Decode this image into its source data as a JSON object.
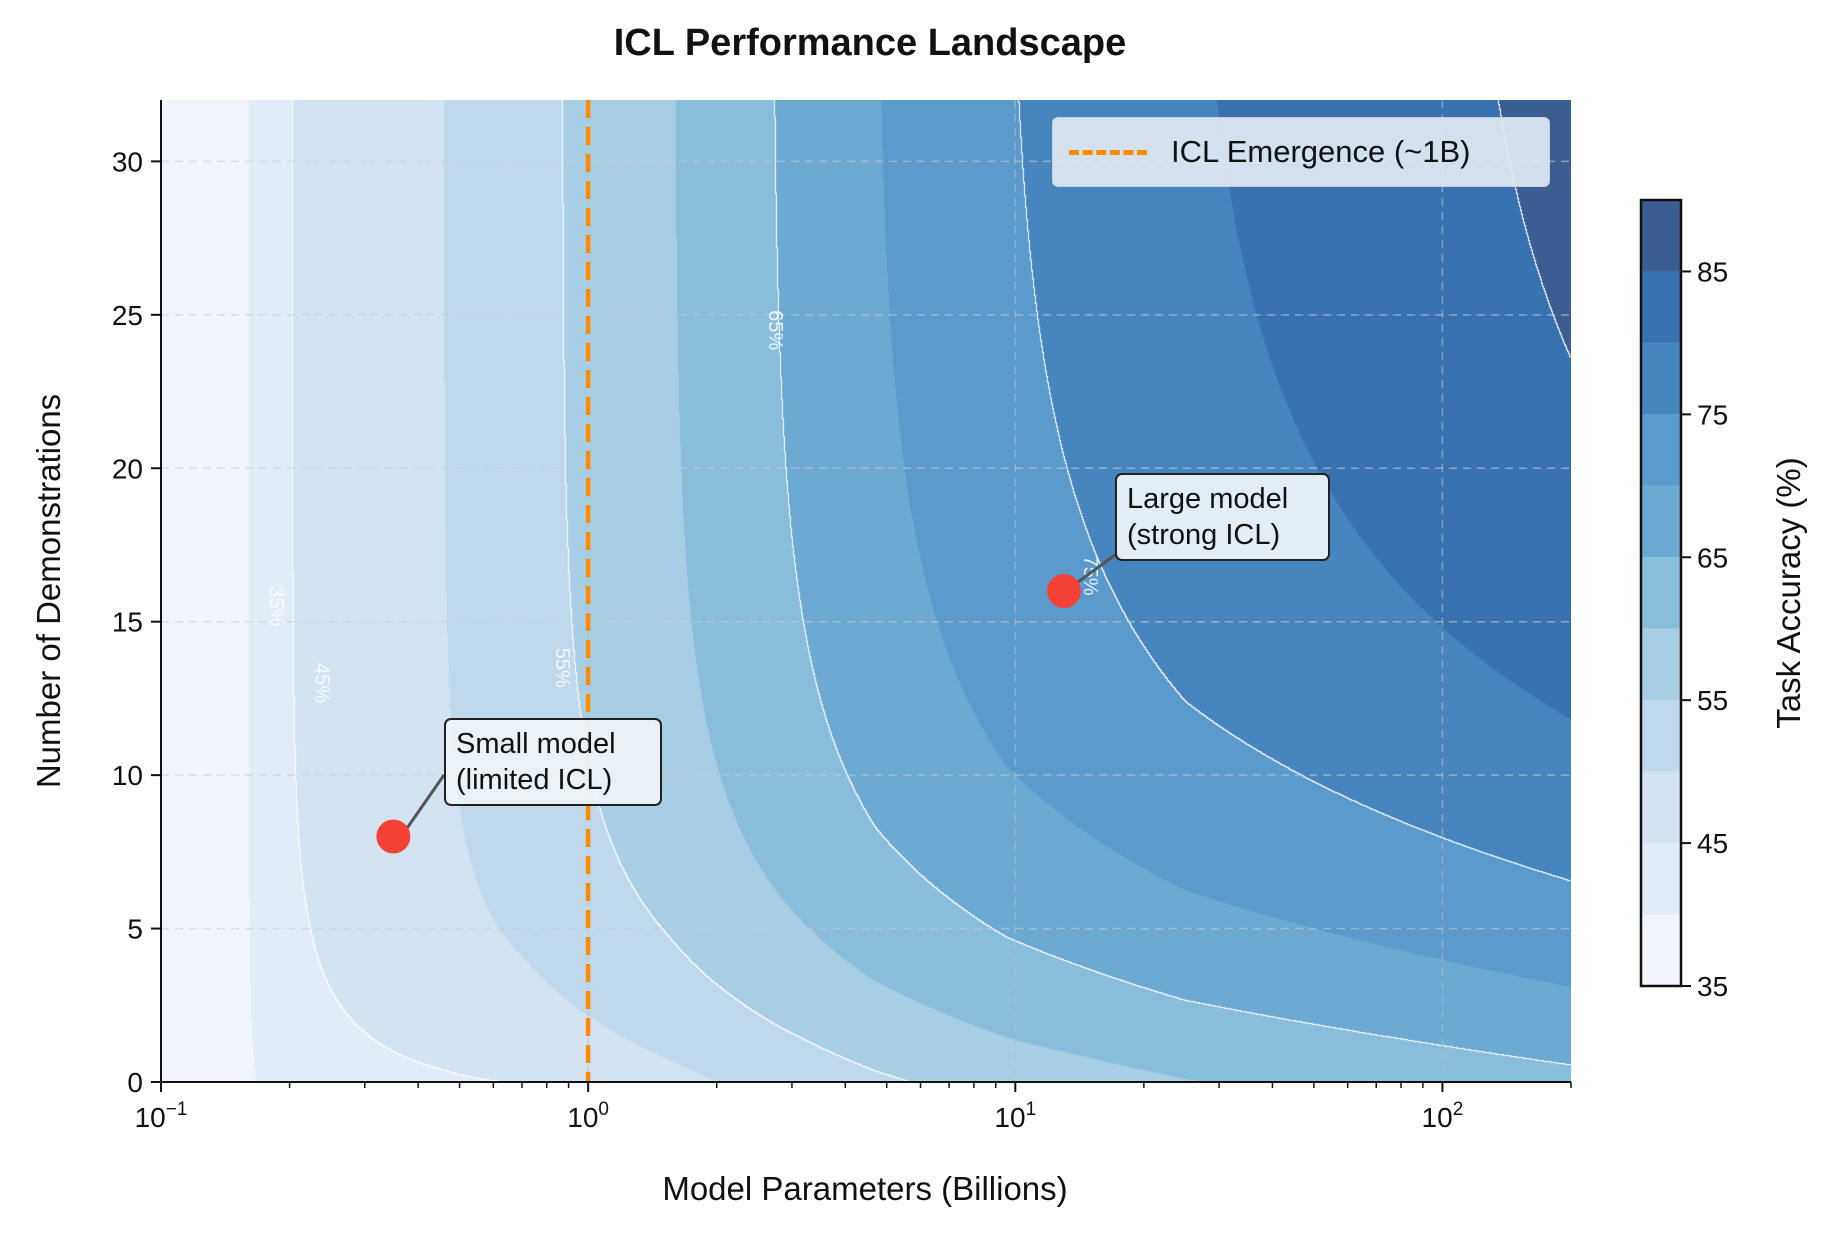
{
  "chart_data": {
    "type": "heatmap",
    "subtype": "filled-contour",
    "title": "ICL Performance Landscape",
    "xlabel": "Model Parameters (Billions)",
    "ylabel": "Number of Demonstrations",
    "xscale": "log",
    "xlim": [
      0.1,
      200
    ],
    "ylim": [
      0,
      32
    ],
    "grid": true,
    "xticks": [
      {
        "value": 0.1,
        "base": "10",
        "exp": "−1"
      },
      {
        "value": 1,
        "base": "10",
        "exp": "0"
      },
      {
        "value": 10,
        "base": "10",
        "exp": "1"
      },
      {
        "value": 100,
        "base": "10",
        "exp": "2"
      }
    ],
    "yticks": [
      "0",
      "5",
      "10",
      "15",
      "20",
      "25",
      "30"
    ],
    "colorbar": {
      "label": "Task Accuracy (%)",
      "range": [
        35,
        90
      ],
      "ticks": [
        "35",
        "45",
        "55",
        "65",
        "75",
        "85"
      ],
      "levels": [
        35,
        40,
        45,
        50,
        55,
        60,
        65,
        70,
        75,
        80,
        85,
        90
      ],
      "colors": [
        "#f0f5fc",
        "#e2ecf7",
        "#d3e3f2",
        "#bfd8eb",
        "#a7cee3",
        "#88bddc",
        "#6caad4",
        "#5a9acc",
        "#4785bf",
        "#3871b0",
        "#3a5e92"
      ]
    },
    "contour_lines": {
      "levels": [
        35,
        45,
        55,
        65,
        75
      ],
      "labels": [
        "35%",
        "45%",
        "55%",
        "65%",
        "75%"
      ],
      "color": "#ffffff"
    },
    "vline": {
      "x": 1,
      "label": "ICL Emergence (~1B)",
      "color": "#ff8c00",
      "style": "dashed"
    },
    "legend_position": "top-right",
    "points": [
      {
        "x": 0.35,
        "y": 8,
        "color": "#f44336",
        "annotation": "Small model\n(limited ICL)"
      },
      {
        "x": 13,
        "y": 16,
        "color": "#f44336",
        "annotation": "Large model\n(strong ICL)"
      }
    ]
  }
}
